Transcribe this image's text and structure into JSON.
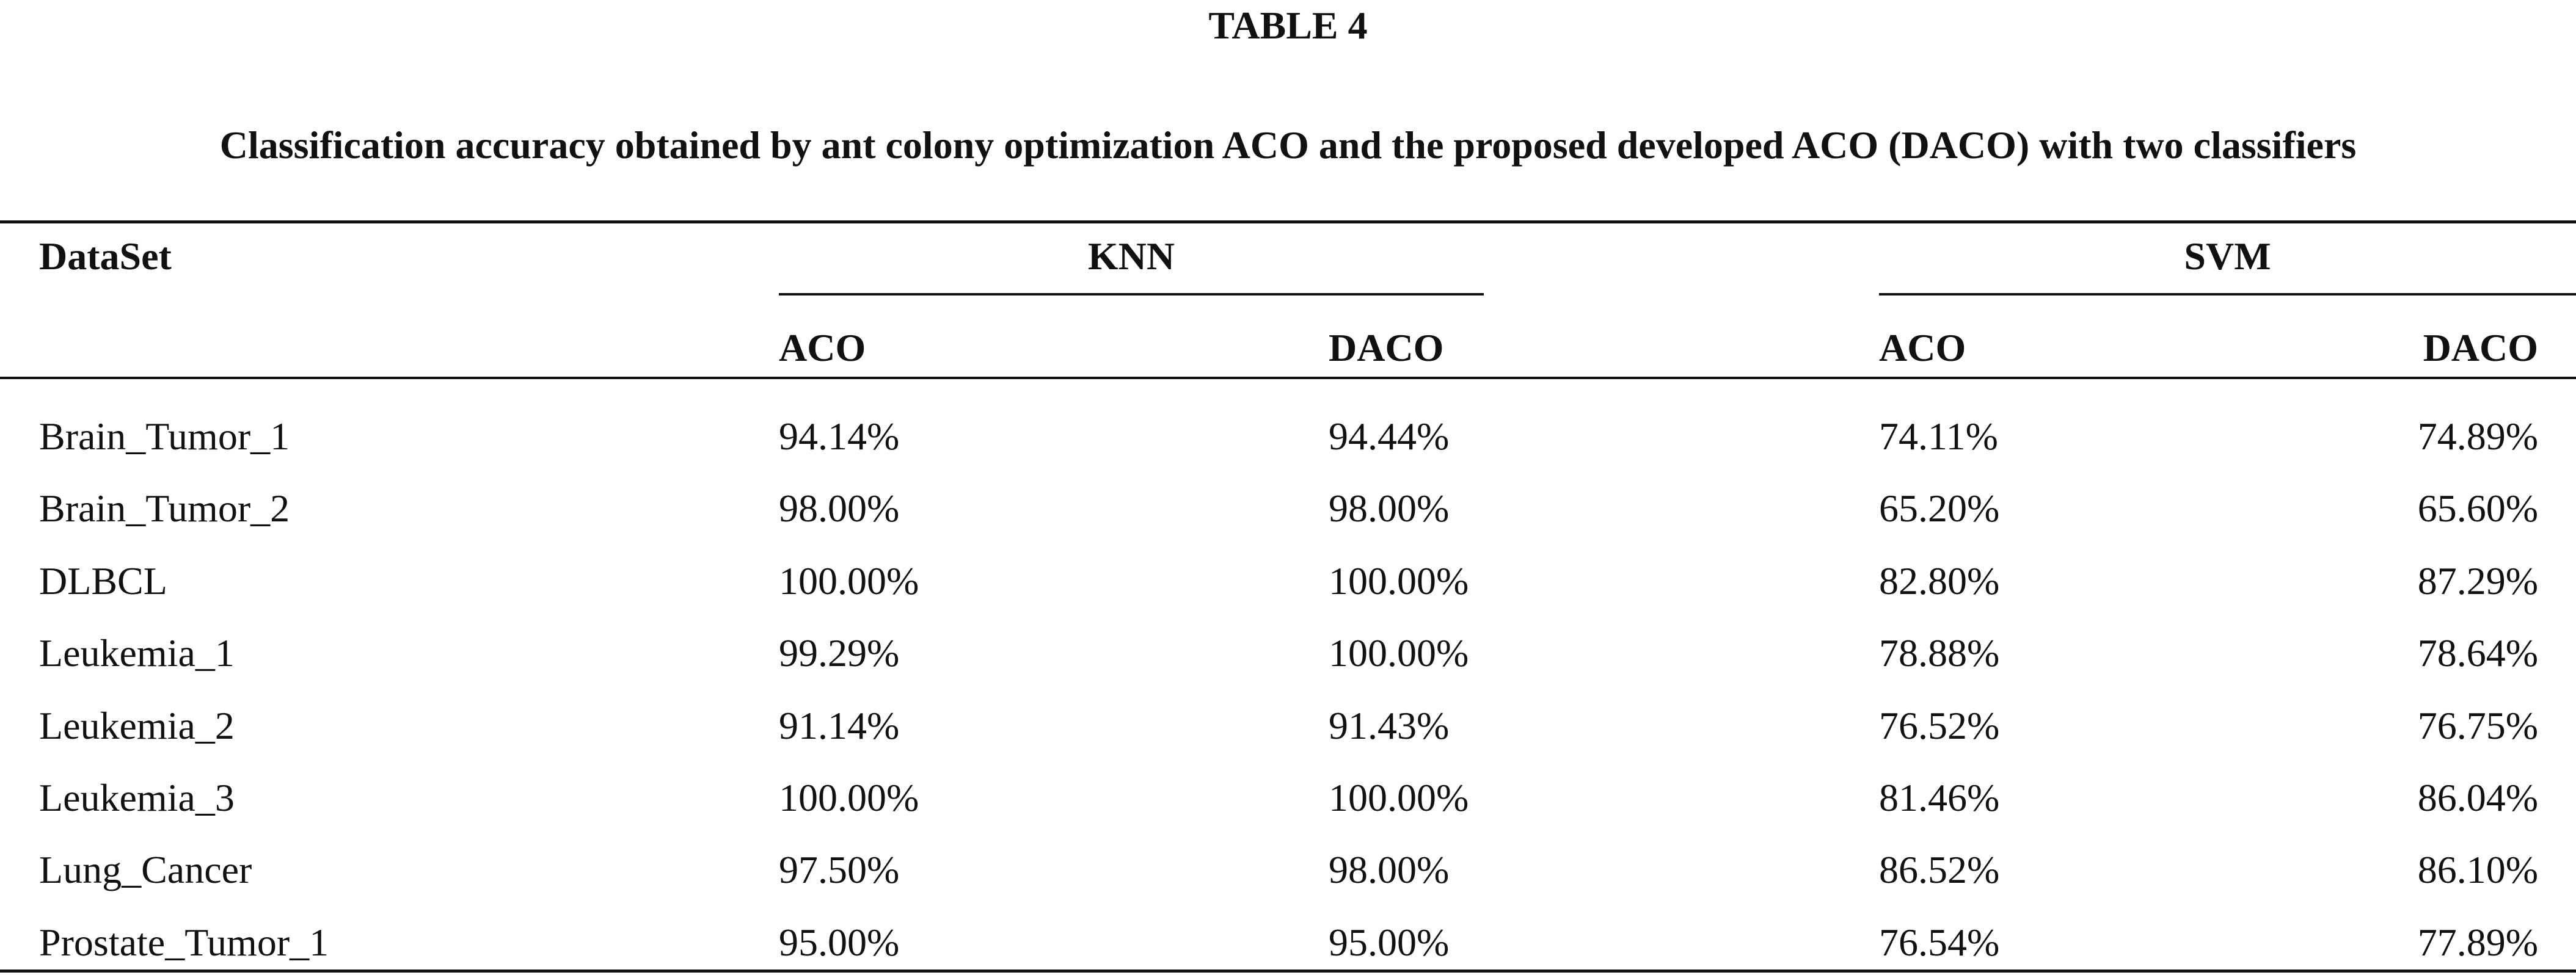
{
  "table": {
    "label": "TABLE 4",
    "caption": "Classification accuracy obtained by ant colony optimization ACO and the proposed developed ACO (DACO) with two classifiers",
    "header": {
      "dataset": "DataSet",
      "groups": [
        "KNN",
        "SVM"
      ],
      "subcolumns": [
        "ACO",
        "DACO",
        "ACO",
        "DACO"
      ]
    },
    "rows": [
      {
        "dataset": "Brain_Tumor_1",
        "knn_aco": "94.14%",
        "knn_daco": "94.44%",
        "svm_aco": "74.11%",
        "svm_daco": "74.89%"
      },
      {
        "dataset": "Brain_Tumor_2",
        "knn_aco": "98.00%",
        "knn_daco": "98.00%",
        "svm_aco": "65.20%",
        "svm_daco": "65.60%"
      },
      {
        "dataset": "DLBCL",
        "knn_aco": "100.00%",
        "knn_daco": "100.00%",
        "svm_aco": "82.80%",
        "svm_daco": "87.29%"
      },
      {
        "dataset": "Leukemia_1",
        "knn_aco": "99.29%",
        "knn_daco": "100.00%",
        "svm_aco": "78.88%",
        "svm_daco": "78.64%"
      },
      {
        "dataset": "Leukemia_2",
        "knn_aco": "91.14%",
        "knn_daco": "91.43%",
        "svm_aco": "76.52%",
        "svm_daco": "76.75%"
      },
      {
        "dataset": "Leukemia_3",
        "knn_aco": "100.00%",
        "knn_daco": "100.00%",
        "svm_aco": "81.46%",
        "svm_daco": "86.04%"
      },
      {
        "dataset": "Lung_Cancer",
        "knn_aco": "97.50%",
        "knn_daco": "98.00%",
        "svm_aco": "86.52%",
        "svm_daco": "86.10%"
      },
      {
        "dataset": "Prostate_Tumor_1",
        "knn_aco": "95.00%",
        "knn_daco": "95.00%",
        "svm_aco": "76.54%",
        "svm_daco": "77.89%"
      }
    ]
  }
}
